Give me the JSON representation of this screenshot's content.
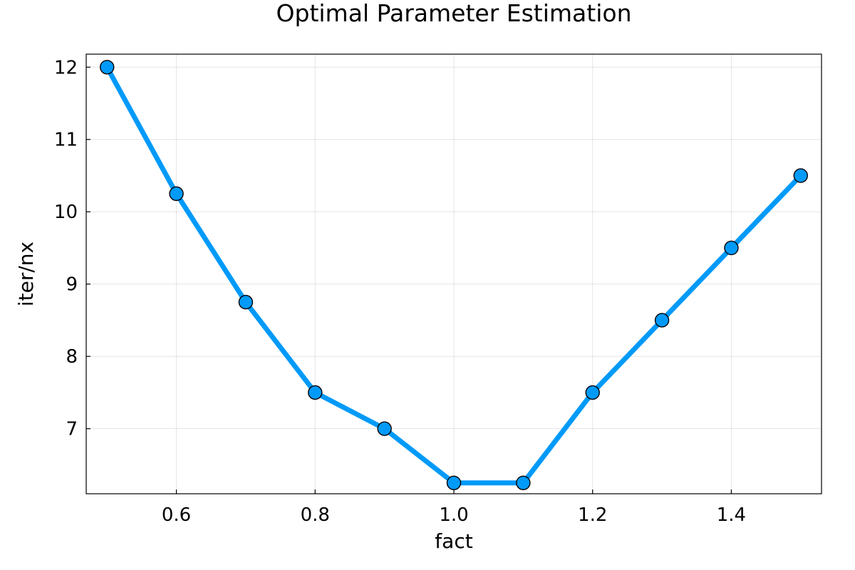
{
  "chart_data": {
    "type": "line",
    "title": "Optimal Parameter Estimation",
    "xlabel": "fact",
    "ylabel": "iter/nx",
    "xlim": [
      0.47,
      1.53
    ],
    "ylim": [
      6.1,
      12.18
    ],
    "x_ticks": [
      0.6,
      0.8,
      1.0,
      1.2,
      1.4
    ],
    "x_tick_labels": [
      "0.6",
      "0.8",
      "1.0",
      "1.2",
      "1.4"
    ],
    "y_ticks": [
      7,
      8,
      9,
      10,
      11,
      12
    ],
    "y_tick_labels": [
      "7",
      "8",
      "9",
      "10",
      "11",
      "12"
    ],
    "grid": true,
    "legend": "none",
    "series": [
      {
        "x": [
          0.5,
          0.6,
          0.7,
          0.8,
          0.9,
          1.0,
          1.1,
          1.2,
          1.3,
          1.4,
          1.5
        ],
        "values": [
          12.0,
          10.25,
          8.75,
          7.5,
          7.0,
          6.25,
          6.25,
          7.5,
          8.5,
          9.5,
          10.5
        ],
        "color": "#009af9",
        "marker": "circle",
        "marker_edge_color": "#000000"
      }
    ]
  }
}
